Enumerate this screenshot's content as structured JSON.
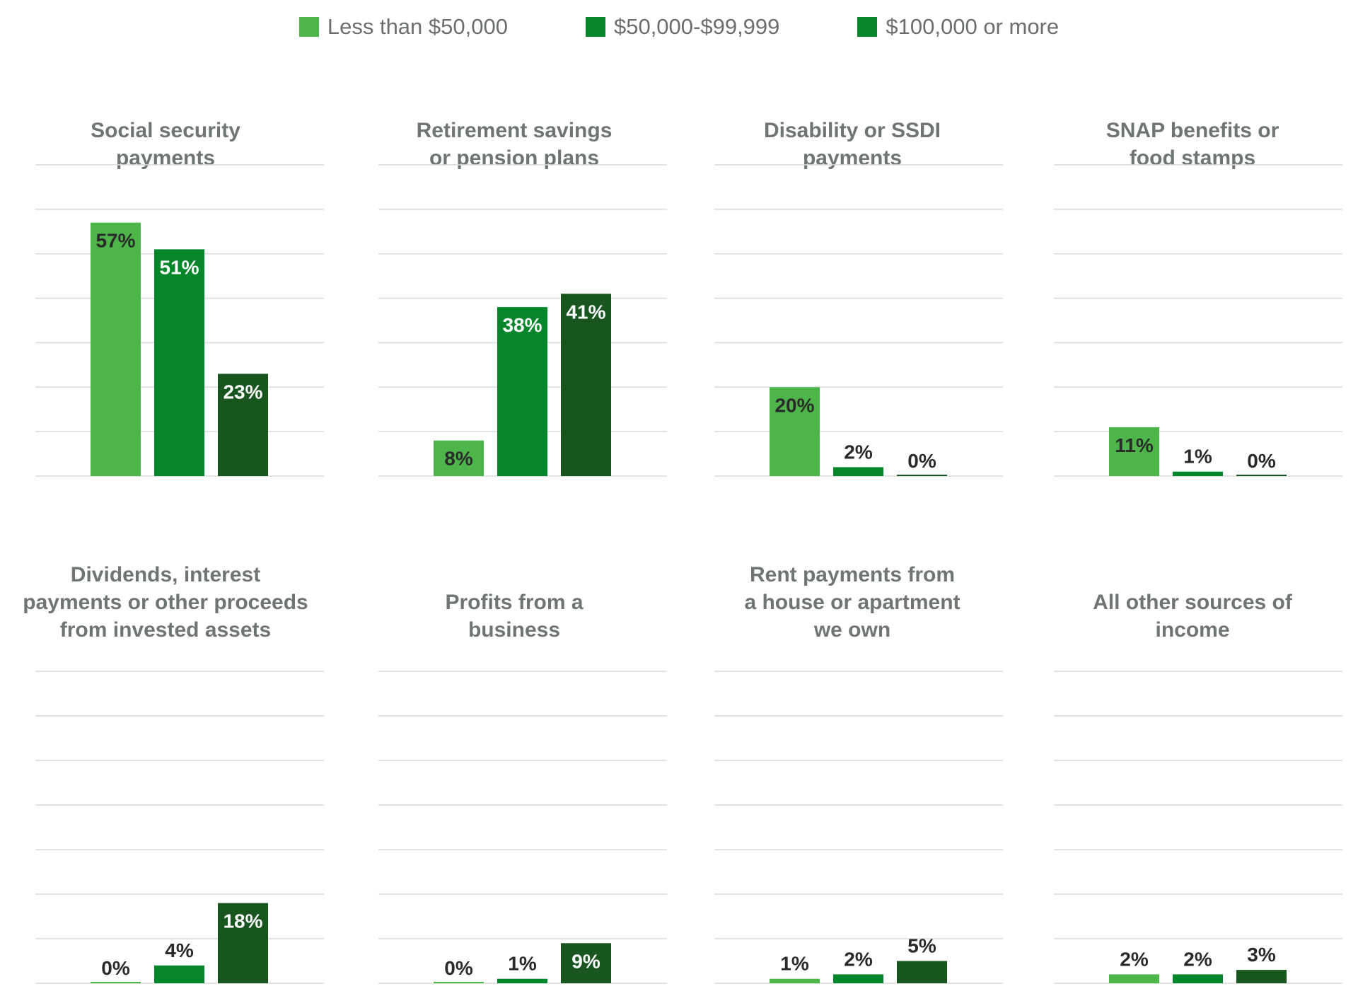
{
  "chart_data": {
    "type": "bar",
    "legend_position": "top",
    "grid": true,
    "ylim": [
      0,
      70
    ],
    "series": [
      {
        "name": "Less than $50,000",
        "color": "#4db549"
      },
      {
        "name": "$50,000-$99,999",
        "color": "#05862b"
      },
      {
        "name": "$100,000 or more",
        "color": "#19561f"
      }
    ],
    "panels": [
      {
        "title_lines": [
          "Social security",
          "payments"
        ],
        "values": [
          57,
          51,
          23
        ],
        "labels": [
          "57%",
          "51%",
          "23%"
        ]
      },
      {
        "title_lines": [
          "Retirement savings",
          "or pension plans"
        ],
        "values": [
          8,
          38,
          41
        ],
        "labels": [
          "8%",
          "38%",
          "41%"
        ]
      },
      {
        "title_lines": [
          "Disability or SSDI",
          "payments"
        ],
        "values": [
          20,
          2,
          0
        ],
        "labels": [
          "20%",
          "2%",
          "0%"
        ]
      },
      {
        "title_lines": [
          "SNAP benefits or",
          "food stamps"
        ],
        "values": [
          11,
          1,
          0
        ],
        "labels": [
          "11%",
          "1%",
          "0%"
        ]
      },
      {
        "title_lines": [
          "Dividends, interest",
          "payments or other proceeds",
          "from invested assets"
        ],
        "values": [
          0,
          4,
          18
        ],
        "labels": [
          "0%",
          "4%",
          "18%"
        ]
      },
      {
        "title_lines": [
          "Profits from a",
          "business"
        ],
        "values": [
          0,
          1,
          9
        ],
        "labels": [
          "0%",
          "1%",
          "9%"
        ]
      },
      {
        "title_lines": [
          "Rent payments from",
          "a house or apartment",
          "we own"
        ],
        "values": [
          1,
          2,
          5
        ],
        "labels": [
          "1%",
          "2%",
          "5%"
        ]
      },
      {
        "title_lines": [
          "All other sources of",
          "income"
        ],
        "values": [
          2,
          2,
          3
        ],
        "labels": [
          "2%",
          "2%",
          "3%"
        ]
      }
    ]
  }
}
